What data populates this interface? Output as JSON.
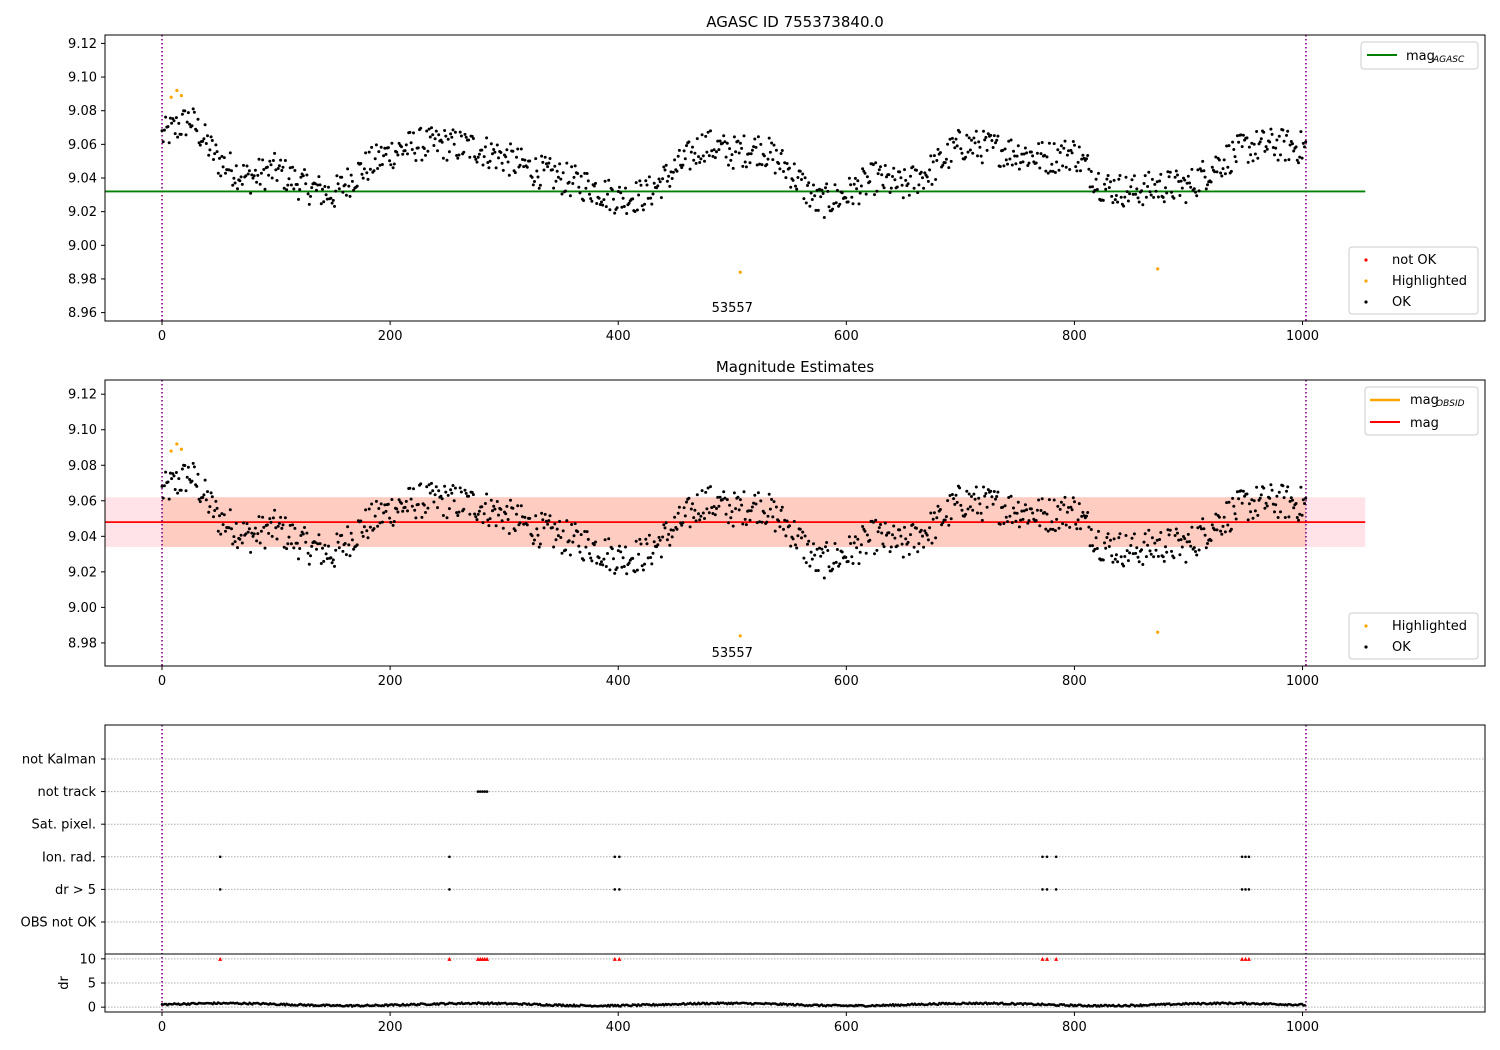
{
  "chart_data": [
    {
      "type": "scatter",
      "title": "AGASC ID 755373840.0",
      "annotation": "53557",
      "xlim": [
        -50,
        1160
      ],
      "ylim": [
        8.955,
        9.125
      ],
      "xticks": [
        0,
        200,
        400,
        600,
        800,
        1000
      ],
      "yticks": [
        8.96,
        8.98,
        9.0,
        9.02,
        9.04,
        9.06,
        9.08,
        9.1,
        9.12
      ],
      "vlines": [
        0,
        1003
      ],
      "hline": {
        "name": "mag_AGASC",
        "y": 9.032,
        "x_range": [
          -50,
          1055
        ],
        "color": "#008000"
      },
      "upper_legend": [
        {
          "label": "mag",
          "sub": "AGASC",
          "color": "#008000"
        }
      ],
      "lower_legend": [
        {
          "label": "not OK",
          "color": "#ff0000"
        },
        {
          "label": "Highlighted",
          "color": "#ffa500"
        },
        {
          "label": "OK",
          "color": "#000000"
        }
      ],
      "series": [
        {
          "name": "OK",
          "color": "#000000",
          "x": [
            0,
            25,
            50,
            75,
            100,
            125,
            150,
            175,
            200,
            225,
            250,
            275,
            300,
            325,
            350,
            375,
            400,
            425,
            450,
            475,
            500,
            525,
            550,
            575,
            600,
            625,
            650,
            675,
            700,
            725,
            750,
            775,
            800,
            825,
            850,
            875,
            900,
            925,
            950,
            975,
            1000
          ],
          "y": [
            9.065,
            9.075,
            9.05,
            9.04,
            9.045,
            9.035,
            9.03,
            9.045,
            9.055,
            9.06,
            9.06,
            9.058,
            9.052,
            9.045,
            9.04,
            9.035,
            9.028,
            9.03,
            9.045,
            9.06,
            9.055,
            9.058,
            9.045,
            9.025,
            9.03,
            9.04,
            9.035,
            9.045,
            9.06,
            9.058,
            9.055,
            9.052,
            9.055,
            9.035,
            9.032,
            9.035,
            9.035,
            9.048,
            9.058,
            9.06,
            9.058
          ],
          "spread": 0.02
        },
        {
          "name": "Highlighted",
          "color": "#ffa500",
          "x": [
            8,
            13,
            17,
            507,
            873
          ],
          "y": [
            9.088,
            9.092,
            9.089,
            8.984,
            8.986
          ]
        }
      ]
    },
    {
      "type": "scatter",
      "title": "Magnitude Estimates",
      "annotation": "53557",
      "xlim": [
        -50,
        1160
      ],
      "ylim": [
        8.967,
        9.128
      ],
      "xticks": [
        0,
        200,
        400,
        600,
        800,
        1000
      ],
      "yticks": [
        8.98,
        9.0,
        9.02,
        9.04,
        9.06,
        9.08,
        9.1,
        9.12
      ],
      "vlines": [
        0,
        1003
      ],
      "band_pink": {
        "y": [
          9.034,
          9.062
        ],
        "x_range": [
          -50,
          1055
        ],
        "color": "#ffc0cb"
      },
      "band_orange": {
        "y": [
          9.034,
          9.062
        ],
        "x_range": [
          0,
          1003
        ],
        "color": "#ffa07a"
      },
      "hline_mag": {
        "name": "mag",
        "y": 9.048,
        "color": "#ff0000"
      },
      "hline_mag_obsid": {
        "name": "mag_OBSID",
        "y": 9.048,
        "color": "#ffa500"
      },
      "upper_legend": [
        {
          "label": "mag",
          "sub": "OBSID",
          "color": "#ffa500"
        },
        {
          "label": "mag",
          "sub": "",
          "color": "#ff0000"
        }
      ],
      "lower_legend": [
        {
          "label": "Highlighted",
          "color": "#ffa500"
        },
        {
          "label": "OK",
          "color": "#000000"
        }
      ],
      "same_points_as": 0
    },
    {
      "type": "scatter",
      "categories": [
        "not Kalman",
        "not track",
        "Sat. pixel.",
        "Ion. rad.",
        "dr > 5",
        "OBS not OK"
      ],
      "xlim": [
        -50,
        1160
      ],
      "xticks": [
        0,
        200,
        400,
        600,
        800,
        1000
      ],
      "vlines": [
        0,
        1003
      ],
      "flags": [
        {
          "category": "not track",
          "x": [
            277,
            279,
            281,
            283,
            285
          ]
        },
        {
          "category": "Ion. rad.",
          "x": [
            51,
            252,
            397,
            401,
            772,
            776,
            784,
            947,
            950,
            953
          ]
        },
        {
          "category": "dr > 5",
          "x": [
            51,
            252,
            397,
            401,
            772,
            776,
            784,
            947,
            950,
            953
          ]
        }
      ],
      "dr": {
        "ylabel": "dr",
        "ylim": [
          -1,
          11
        ],
        "yticks": [
          0,
          5,
          10
        ],
        "gridlines": [
          0,
          5,
          10
        ],
        "baseline": {
          "x_range": [
            0,
            1003
          ],
          "mean": 0.55
        },
        "clipped_markers": {
          "y": 10,
          "color": "#ff0000",
          "x": [
            51,
            252,
            277,
            279,
            281,
            283,
            285,
            397,
            401,
            772,
            776,
            784,
            947,
            950,
            953
          ]
        }
      }
    }
  ]
}
